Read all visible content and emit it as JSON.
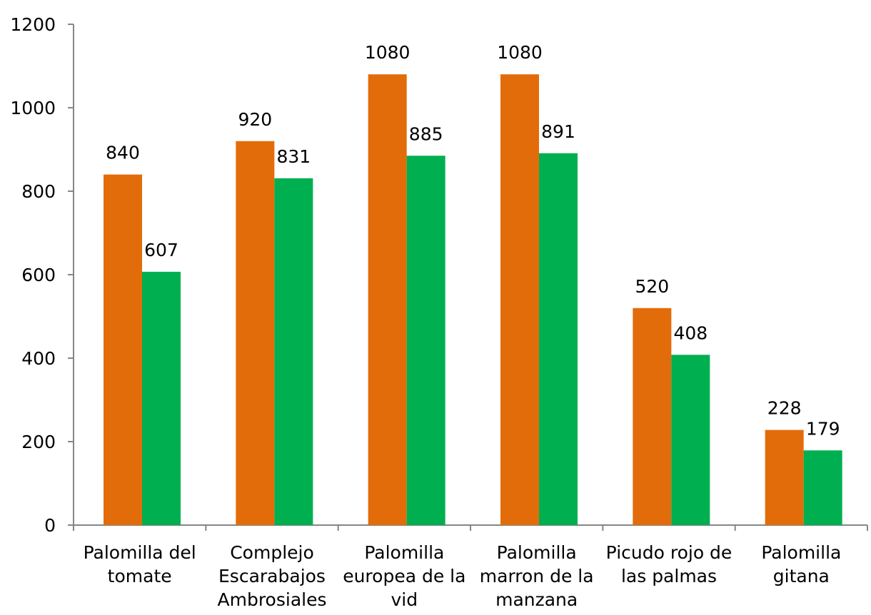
{
  "chart_data": {
    "type": "bar",
    "categories": [
      [
        "Palomilla del",
        "tomate"
      ],
      [
        "Complejo",
        "Escarabajos",
        "Ambrosiales"
      ],
      [
        "Palomilla",
        "europea de la",
        "vid"
      ],
      [
        "Palomilla",
        "marron de la",
        "manzana"
      ],
      [
        "Picudo rojo de",
        "las palmas"
      ],
      [
        "Palomilla",
        "gitana"
      ]
    ],
    "series": [
      {
        "values": [
          840,
          920,
          1080,
          1080,
          520,
          228
        ],
        "color": "#E36C0A"
      },
      {
        "values": [
          607,
          831,
          885,
          891,
          408,
          179
        ],
        "color": "#00B050"
      }
    ],
    "ylim": [
      0,
      1200
    ],
    "yticks": [
      0,
      200,
      400,
      600,
      800,
      1000,
      1200
    ],
    "grid": false,
    "legend": "none"
  }
}
